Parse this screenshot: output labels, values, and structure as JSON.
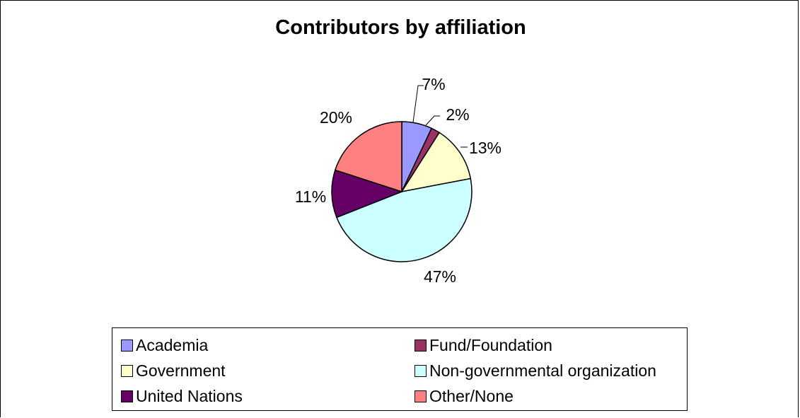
{
  "chart_data": {
    "type": "pie",
    "title": "Contributors by affiliation",
    "labels": [
      "Academia",
      "Fund/Foundation",
      "Government",
      "Non-governmental organization",
      "United Nations",
      "Other/None"
    ],
    "values": [
      7,
      2,
      13,
      47,
      11,
      20
    ],
    "value_labels": [
      "7%",
      "2%",
      "13%",
      "47%",
      "11%",
      "20%"
    ],
    "colors": [
      "#9999ff",
      "#993366",
      "#ffffcc",
      "#ccffff",
      "#660066",
      "#ff8080"
    ],
    "legend_position": "bottom",
    "legend": [
      "Academia",
      "Fund/Foundation",
      "Government",
      "Non-governmental organization",
      "United Nations",
      "Other/None"
    ]
  }
}
